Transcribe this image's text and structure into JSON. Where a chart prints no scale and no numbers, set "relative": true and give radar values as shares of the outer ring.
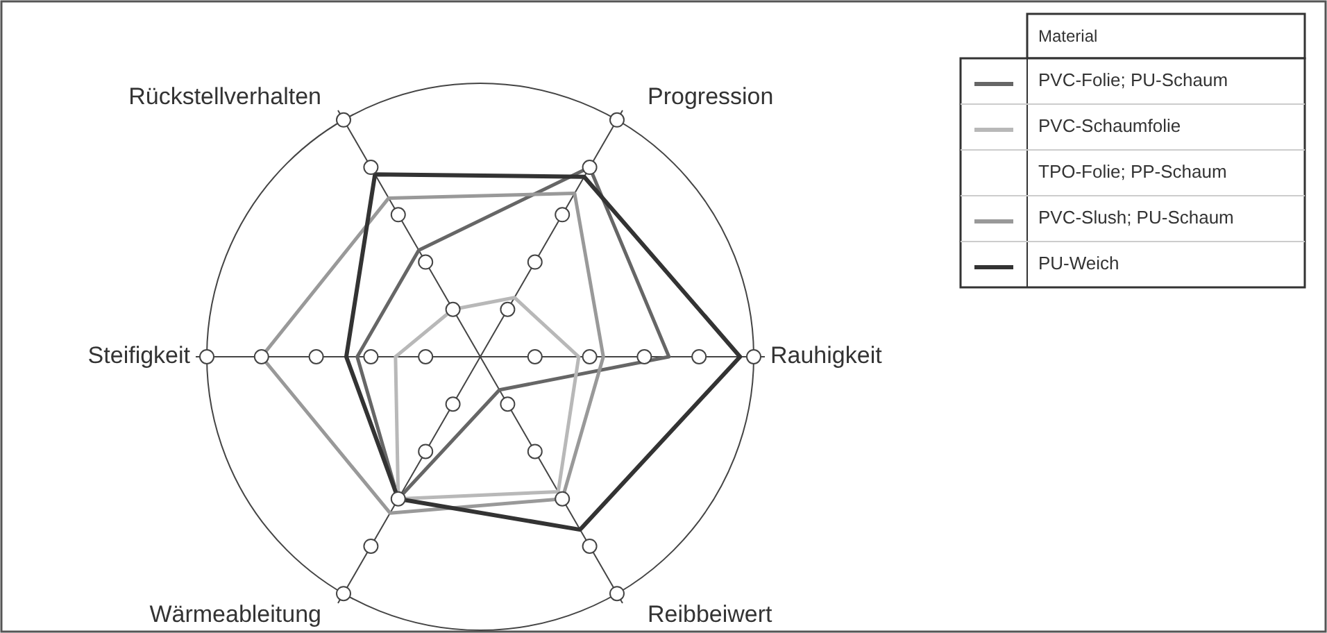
{
  "chart_data": {
    "type": "radar",
    "relative": true,
    "legend_title": "Material",
    "legend": "top right",
    "categories": [
      "Progression",
      "Rauhigkeit",
      "Reibbeiwert",
      "Wärmeableitung",
      "Steifigkeit",
      "Rückstellverhalten"
    ],
    "series": [
      {
        "name": "PVC-Folie; PU-Schaum",
        "color": "#666666",
        "values": [
          0.8,
          0.69,
          0.14,
          0.6,
          0.45,
          0.45
        ]
      },
      {
        "name": "PVC-Schaumfolie",
        "color": "#b8b8b8",
        "values": [
          0.25,
          0.36,
          0.57,
          0.6,
          0.31,
          0.2
        ]
      },
      {
        "name": "TPO-Folie; PP-Schaum",
        "color": "#ffffff",
        "values": [
          null,
          null,
          null,
          null,
          null,
          null
        ]
      },
      {
        "name": "PVC-Slush; PU-Schaum",
        "color": "#999999",
        "values": [
          0.69,
          0.45,
          0.6,
          0.66,
          0.8,
          0.67
        ]
      },
      {
        "name": "PU-Weich",
        "color": "#333333",
        "values": [
          0.76,
          0.95,
          0.73,
          0.6,
          0.49,
          0.77
        ]
      }
    ]
  }
}
